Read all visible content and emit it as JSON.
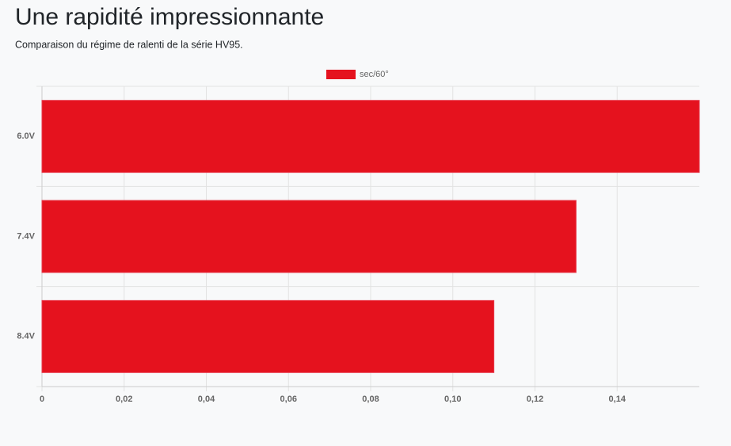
{
  "chart_data": {
    "type": "bar",
    "orientation": "horizontal",
    "title": "Une rapidité impressionnante",
    "subtitle": "Comparaison du régime de ralenti de la série HV95.",
    "categories": [
      "6.0V",
      "7.4V",
      "8.4V"
    ],
    "series": [
      {
        "name": "sec/60°",
        "color": "#e5121e",
        "values": [
          0.16,
          0.13,
          0.11
        ]
      }
    ],
    "xlim": [
      0,
      0.16
    ],
    "xticks": [
      0,
      {
        "value": 0.02,
        "label": "0,02"
      },
      {
        "value": 0.04,
        "label": "0,04"
      },
      {
        "value": 0.06,
        "label": "0,06"
      },
      {
        "value": 0.08,
        "label": "0,08"
      },
      {
        "value": 0.1,
        "label": "0,10"
      },
      {
        "value": 0.12,
        "label": "0,12"
      },
      {
        "value": 0.14,
        "label": "0,14"
      }
    ],
    "grid": true,
    "legend": "top"
  }
}
